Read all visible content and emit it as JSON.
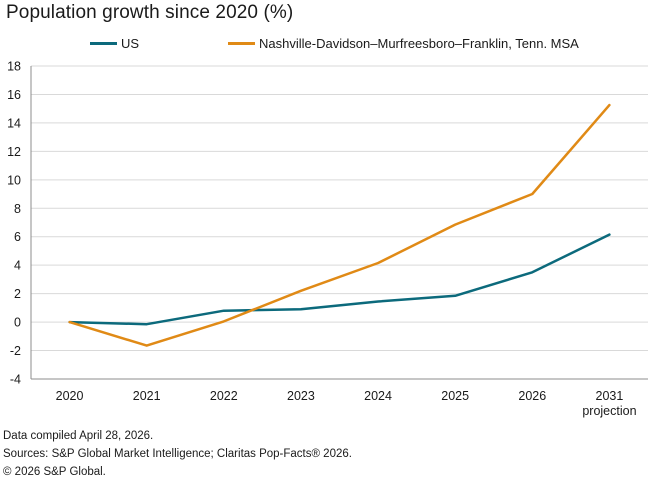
{
  "title": "Population growth since 2020 (%)",
  "footer": {
    "line1": "Data compiled April 28, 2026.",
    "line2": "Sources: S&P Global Market Intelligence; Claritas Pop-Facts® 2026.",
    "line3": "© 2026 S&P Global."
  },
  "colors": {
    "us": "#0c6a7c",
    "nashville": "#e08a16",
    "grid": "#d9d9d9",
    "axis": "#8c8c8c"
  },
  "chart_data": {
    "type": "line",
    "title": "Population growth since 2020 (%)",
    "categories": [
      "2020",
      "2021",
      "2022",
      "2023",
      "2024",
      "2025",
      "2026",
      "2031 projection"
    ],
    "category_labels": [
      [
        "2020"
      ],
      [
        "2021"
      ],
      [
        "2022"
      ],
      [
        "2023"
      ],
      [
        "2024"
      ],
      [
        "2025"
      ],
      [
        "2026"
      ],
      [
        "2031",
        "projection"
      ]
    ],
    "ylim": [
      -4,
      18
    ],
    "yticks": [
      "18",
      "16",
      "14",
      "12",
      "10",
      "8",
      "6",
      "4",
      "2",
      "0",
      "-2",
      "-4"
    ],
    "grid": "horizontal",
    "legend_position": "top",
    "series": [
      {
        "name": "US",
        "color": "#0c6a7c",
        "values": [
          0,
          -0.15,
          0.8,
          0.9,
          1.45,
          1.85,
          3.5,
          6.15
        ]
      },
      {
        "name": "Nashville-Davidson–Murfreesboro–Franklin, Tenn. MSA",
        "color": "#e08a16",
        "values": [
          0,
          -1.65,
          0.05,
          2.2,
          4.15,
          6.85,
          9.0,
          15.25
        ]
      }
    ]
  }
}
